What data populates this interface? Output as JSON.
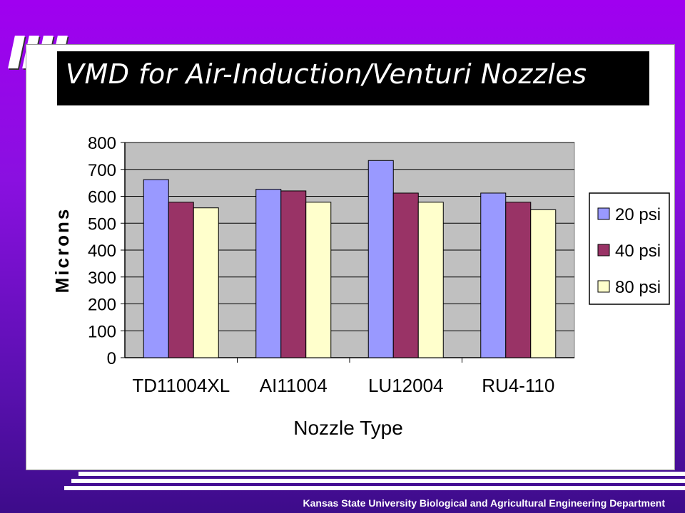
{
  "slide": {
    "title": "VMD for Air-Induction/Venturi Nozzles",
    "footer": "Kansas State University Biological and Agricultural Engineering Department"
  },
  "colors": {
    "background": "#9a00f0",
    "plot_area": "#c0c0c0",
    "series_20": "#9999ff",
    "series_40": "#993366",
    "series_80": "#ffffcc"
  },
  "chart_data": {
    "type": "bar",
    "title": "",
    "xlabel": "Nozzle Type",
    "ylabel": "Microns",
    "ylim": [
      0,
      800
    ],
    "yticks": [
      0,
      100,
      200,
      300,
      400,
      500,
      600,
      700,
      800
    ],
    "grid": true,
    "legend_position": "right",
    "categories": [
      "TD11004XL",
      "AI11004",
      "LU12004",
      "RU4-110"
    ],
    "series": [
      {
        "name": "20 psi",
        "color": "#9999ff",
        "values": [
          662,
          626,
          733,
          612
        ]
      },
      {
        "name": "40 psi",
        "color": "#993366",
        "values": [
          578,
          620,
          612,
          578
        ]
      },
      {
        "name": "80 psi",
        "color": "#ffffcc",
        "values": [
          557,
          578,
          578,
          550
        ]
      }
    ]
  }
}
